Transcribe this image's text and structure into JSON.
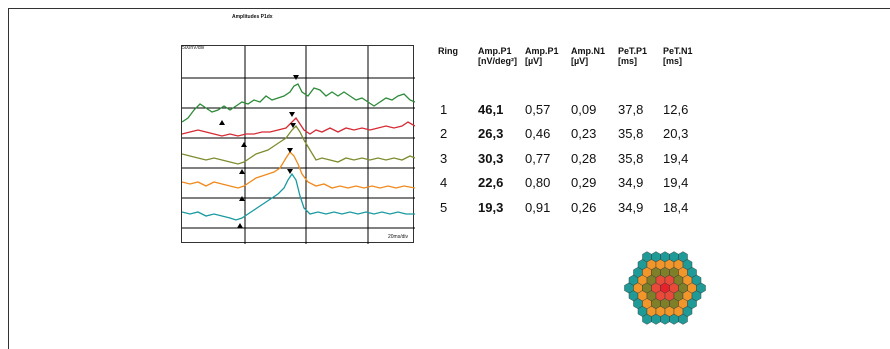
{
  "report": {
    "title": "Amplitudes P1dx"
  },
  "plot": {
    "vertical_scale": "500nV/div",
    "horizontal_scale": "20ms/div"
  },
  "table": {
    "headers": [
      {
        "line1": "Ring",
        "line2": ""
      },
      {
        "line1": "Amp.P1",
        "line2": "[nV/deg²]"
      },
      {
        "line1": "Amp.P1",
        "line2": "[µV]"
      },
      {
        "line1": "Amp.N1",
        "line2": "[µV]"
      },
      {
        "line1": "PeT.P1",
        "line2": "[ms]"
      },
      {
        "line1": "PeT.N1",
        "line2": "[ms]"
      }
    ],
    "rows": [
      [
        "1",
        "46,1",
        "0,57",
        "0,09",
        "37,8",
        "12,6"
      ],
      [
        "2",
        "26,3",
        "0,46",
        "0,23",
        "35,8",
        "20,3"
      ],
      [
        "3",
        "30,3",
        "0,77",
        "0,28",
        "35,8",
        "19,4"
      ],
      [
        "4",
        "22,6",
        "0,80",
        "0,29",
        "34,9",
        "19,4"
      ],
      [
        "5",
        "19,3",
        "0,91",
        "0,26",
        "34,9",
        "18,4"
      ]
    ]
  },
  "colors": {
    "ring1": "#2e8b3a",
    "ring2": "#d62a34",
    "ring3": "#7d8d2f",
    "ring4": "#f08a1c",
    "ring5": "#1a9aa0",
    "hex_center": "#e8202a",
    "hex_ring_red": "#e84a3a",
    "hex_ring_olive": "#7f7f2a",
    "hex_ring_orange": "#f0962a",
    "hex_outer": "#1f9a96"
  }
}
